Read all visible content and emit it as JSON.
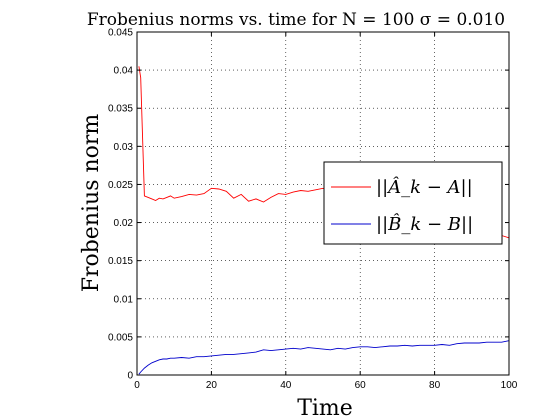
{
  "chart_data": {
    "type": "line",
    "title": "Frobenius norms vs. time for N = 100 σ = 0.010",
    "xlabel": "Time",
    "ylabel": "Frobenius norm",
    "xlim": [
      0,
      100
    ],
    "ylim": [
      0,
      0.045
    ],
    "xticks": [
      0,
      20,
      40,
      60,
      80,
      100
    ],
    "xtick_labels": [
      "0",
      "20",
      "40",
      "60",
      "80",
      "100"
    ],
    "yticks": [
      0,
      0.005,
      0.01,
      0.015,
      0.02,
      0.025,
      0.03,
      0.035,
      0.04,
      0.045
    ],
    "ytick_labels": [
      "0",
      "0.005",
      "0.01",
      "0.015",
      "0.02",
      "0.025",
      "0.03",
      "0.035",
      "0.04",
      "0.045"
    ],
    "grid": true,
    "legend_position": "right",
    "x": [
      0.5,
      1,
      2,
      3,
      4,
      5,
      6,
      7,
      8,
      9,
      10,
      12,
      14,
      16,
      18,
      20,
      22,
      24,
      26,
      28,
      30,
      32,
      34,
      36,
      38,
      40,
      42,
      44,
      46,
      48,
      50,
      52,
      54,
      56,
      58,
      60,
      62,
      64,
      66,
      68,
      70,
      72,
      74,
      76,
      78,
      80,
      82,
      84,
      86,
      88,
      90,
      92,
      94,
      96,
      98,
      100
    ],
    "series": [
      {
        "name": "||Â_k − A||",
        "color": "#ff0000",
        "values": [
          0.0405,
          0.039,
          0.0235,
          0.0233,
          0.0231,
          0.0229,
          0.0232,
          0.0231,
          0.0233,
          0.0235,
          0.0232,
          0.0234,
          0.0237,
          0.0236,
          0.0238,
          0.0245,
          0.0244,
          0.0241,
          0.0232,
          0.0237,
          0.0228,
          0.0231,
          0.0227,
          0.0233,
          0.0238,
          0.0237,
          0.024,
          0.0242,
          0.0241,
          0.0243,
          0.0245,
          0.0241,
          0.0244,
          0.0242,
          0.024,
          0.0238,
          0.0236,
          0.0235,
          0.0233,
          0.0231,
          0.0229,
          0.0227,
          0.0224,
          0.0222,
          0.0219,
          0.0216,
          0.0213,
          0.021,
          0.0205,
          0.0201,
          0.0197,
          0.0193,
          0.0189,
          0.0186,
          0.0183,
          0.018
        ]
      },
      {
        "name": "||B̂_k − B||",
        "color": "#0000cc",
        "values": [
          0.0001,
          0.0004,
          0.0009,
          0.0013,
          0.0016,
          0.0018,
          0.002,
          0.0021,
          0.0021,
          0.0022,
          0.0022,
          0.0023,
          0.0022,
          0.0024,
          0.0024,
          0.0025,
          0.0026,
          0.0027,
          0.0027,
          0.0028,
          0.0029,
          0.003,
          0.0033,
          0.0032,
          0.0033,
          0.0034,
          0.0035,
          0.0034,
          0.0036,
          0.0035,
          0.0034,
          0.0033,
          0.0035,
          0.0034,
          0.0036,
          0.0037,
          0.0037,
          0.0036,
          0.0037,
          0.0038,
          0.0038,
          0.0039,
          0.0038,
          0.0039,
          0.0039,
          0.0039,
          0.004,
          0.0039,
          0.0041,
          0.0042,
          0.0042,
          0.0042,
          0.0043,
          0.0043,
          0.0043,
          0.0045
        ]
      }
    ],
    "legend_labels": {
      "a": "||Â_k − A||",
      "b": "||B̂_k − B||"
    }
  }
}
